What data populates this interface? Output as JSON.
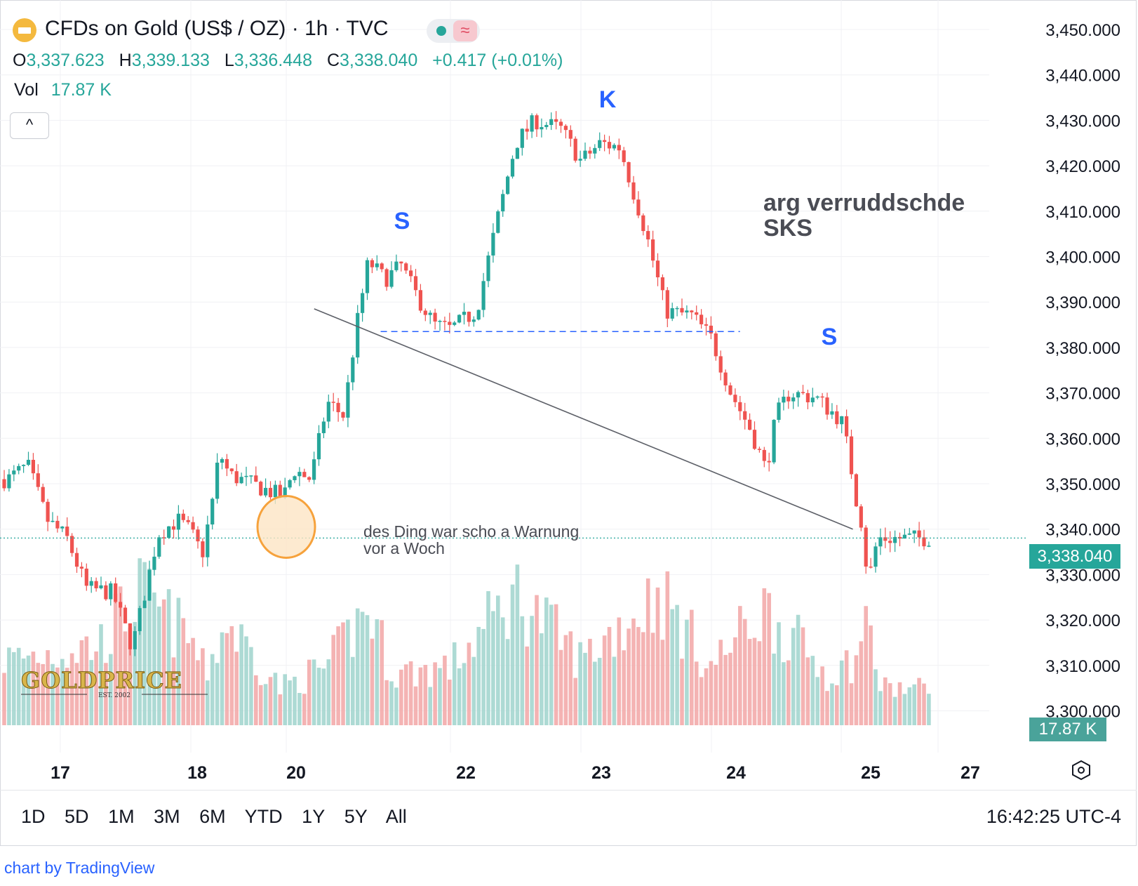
{
  "header": {
    "title": "CFDs on Gold (US$ / OZ) · 1h · TVC",
    "ohlc": [
      {
        "key": "O",
        "value": "3,337.623"
      },
      {
        "key": "H",
        "value": "3,339.133"
      },
      {
        "key": "L",
        "value": "3,336.448"
      },
      {
        "key": "C",
        "value": "3,338.040"
      }
    ],
    "change": "+0.417 (+0.01%)",
    "volume_label": "Vol",
    "volume_value": "17.87 K",
    "collapse_glyph": "^"
  },
  "icons": [
    "gold-bar-icon",
    "market-open-dot-icon",
    "wave-icon",
    "chevron-up-icon",
    "settings-hexagon-icon"
  ],
  "colors": {
    "up": "#26a69a",
    "down": "#ef5350",
    "up_volume": "#9fd3cd",
    "down_volume": "#f2a6a6",
    "annotation_blue": "#2962ff",
    "circle": "#f6a23c"
  },
  "price_axis": {
    "ticks": [
      "3,450.000",
      "3,440.000",
      "3,430.000",
      "3,420.000",
      "3,410.000",
      "3,400.000",
      "3,390.000",
      "3,380.000",
      "3,370.000",
      "3,360.000",
      "3,350.000",
      "3,340.000",
      "3,330.000",
      "3,320.000",
      "3,310.000",
      "3,300.000"
    ],
    "last_price": "3,338.040",
    "volume_tag": "17.87 K"
  },
  "time_axis": {
    "ticks": [
      "17",
      "18",
      "20",
      "22",
      "23",
      "24",
      "25",
      "27"
    ]
  },
  "annotations": {
    "left_shoulder": "S",
    "head": "K",
    "right_shoulder": "S",
    "pattern_title": "arg verruddschde",
    "pattern_subtitle": "SKS",
    "warning_line1": "des Ding war scho a Warnung",
    "warning_line2": "vor a Woch",
    "neckline_price": 3383.5,
    "trendline": [
      {
        "t": 20.34,
        "price": 3388.5
      },
      {
        "t": 25.24,
        "price": 3340.0
      }
    ],
    "circle_center": {
      "t": 20.0,
      "price": 3340.5
    }
  },
  "logo": {
    "text": "GOLDPRICE",
    "sub": "EST. 2002"
  },
  "ranges": [
    "1D",
    "5D",
    "1M",
    "3M",
    "6M",
    "YTD",
    "1Y",
    "5Y",
    "All"
  ],
  "clock": "16:42:25 UTC-4",
  "credit": "chart by TradingView",
  "chart_data": {
    "type": "candlestick",
    "interval": "1h",
    "ylim": [
      3296,
      3452
    ],
    "x_unit": "trading day (x.5 = mid-session)",
    "last_price": 3338.04,
    "volume_last": "17.87 K",
    "price_path": [
      {
        "t": 16.6,
        "price": 3351
      },
      {
        "t": 16.75,
        "price": 3354
      },
      {
        "t": 16.9,
        "price": 3342
      },
      {
        "t": 17.05,
        "price": 3338
      },
      {
        "t": 17.2,
        "price": 3327
      },
      {
        "t": 17.4,
        "price": 3326
      },
      {
        "t": 17.55,
        "price": 3314
      },
      {
        "t": 17.6,
        "price": 3320
      },
      {
        "t": 17.75,
        "price": 3339
      },
      {
        "t": 17.9,
        "price": 3342
      },
      {
        "t": 18.1,
        "price": 3337
      },
      {
        "t": 18.25,
        "price": 3335
      },
      {
        "t": 18.45,
        "price": 3346
      },
      {
        "t": 18.6,
        "price": 3357
      },
      {
        "t": 18.8,
        "price": 3352
      },
      {
        "t": 19.95,
        "price": 3347
      },
      {
        "t": 20.1,
        "price": 3353
      },
      {
        "t": 20.3,
        "price": 3351
      },
      {
        "t": 20.5,
        "price": 3368
      },
      {
        "t": 20.7,
        "price": 3365
      },
      {
        "t": 20.85,
        "price": 3384
      },
      {
        "t": 21.0,
        "price": 3399
      },
      {
        "t": 21.2,
        "price": 3395
      },
      {
        "t": 21.4,
        "price": 3398
      },
      {
        "t": 21.6,
        "price": 3391
      },
      {
        "t": 21.8,
        "price": 3385
      },
      {
        "t": 22.0,
        "price": 3384
      },
      {
        "t": 22.2,
        "price": 3388
      },
      {
        "t": 22.35,
        "price": 3407
      },
      {
        "t": 22.5,
        "price": 3425
      },
      {
        "t": 22.65,
        "price": 3430
      },
      {
        "t": 22.85,
        "price": 3428
      },
      {
        "t": 23.0,
        "price": 3421
      },
      {
        "t": 23.15,
        "price": 3425
      },
      {
        "t": 23.3,
        "price": 3424
      },
      {
        "t": 23.5,
        "price": 3405
      },
      {
        "t": 23.65,
        "price": 3388
      },
      {
        "t": 23.85,
        "price": 3387
      },
      {
        "t": 24.0,
        "price": 3382
      },
      {
        "t": 24.15,
        "price": 3370
      },
      {
        "t": 24.3,
        "price": 3362
      },
      {
        "t": 24.42,
        "price": 3353
      },
      {
        "t": 24.5,
        "price": 3365
      },
      {
        "t": 24.6,
        "price": 3370
      },
      {
        "t": 24.8,
        "price": 3369
      },
      {
        "t": 25.0,
        "price": 3364
      },
      {
        "t": 25.15,
        "price": 3357
      },
      {
        "t": 25.3,
        "price": 3347
      },
      {
        "t": 25.45,
        "price": 3340
      },
      {
        "t": 25.55,
        "price": 3328
      },
      {
        "t": 25.65,
        "price": 3333
      },
      {
        "t": 25.75,
        "price": 3338
      }
    ],
    "volume_profile": [
      {
        "t": 16.6,
        "rel": 0.45
      },
      {
        "t": 17.3,
        "rel": 0.55
      },
      {
        "t": 17.6,
        "rel": 0.9
      },
      {
        "t": 18.3,
        "rel": 0.35
      },
      {
        "t": 18.75,
        "rel": 0.7
      },
      {
        "t": 19.9,
        "rel": 0.25
      },
      {
        "t": 20.5,
        "rel": 0.4
      },
      {
        "t": 21.0,
        "rel": 0.8
      },
      {
        "t": 21.3,
        "rel": 0.35
      },
      {
        "t": 22.0,
        "rel": 0.4
      },
      {
        "t": 22.5,
        "rel": 0.9
      },
      {
        "t": 23.0,
        "rel": 0.45
      },
      {
        "t": 23.6,
        "rel": 0.9
      },
      {
        "t": 24.0,
        "rel": 0.4
      },
      {
        "t": 24.4,
        "rel": 0.8
      },
      {
        "t": 24.9,
        "rel": 0.35
      },
      {
        "t": 25.4,
        "rel": 0.5
      },
      {
        "t": 25.6,
        "rel": 0.85
      },
      {
        "t": 25.75,
        "rel": 0.25
      }
    ]
  }
}
